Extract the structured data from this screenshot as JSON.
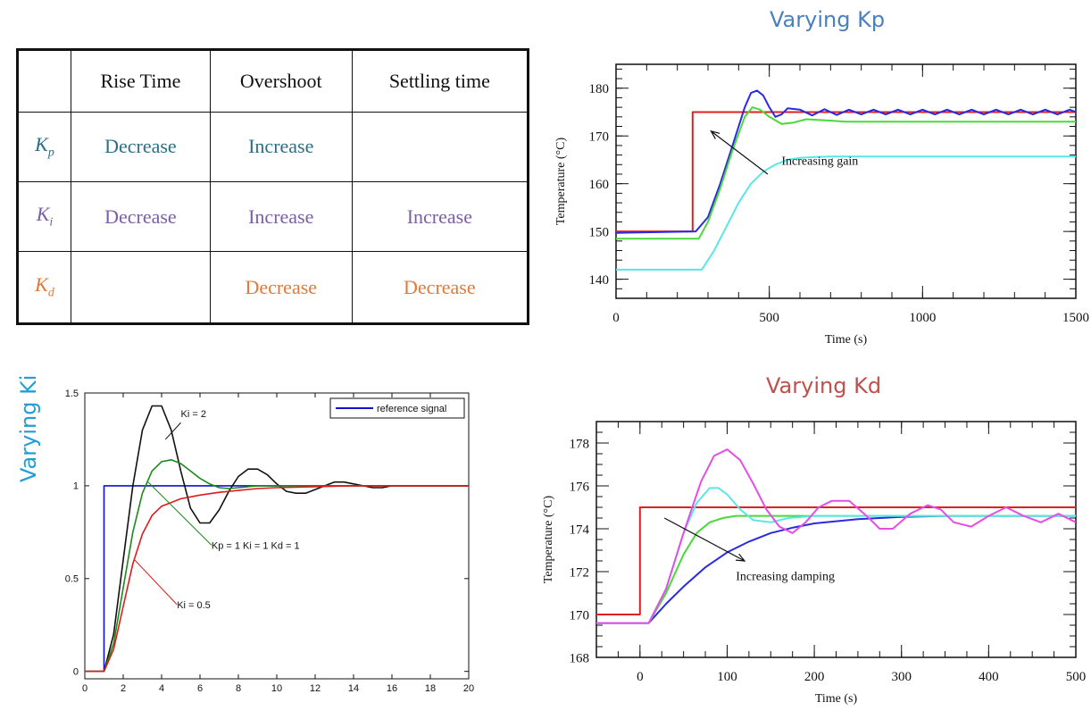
{
  "table": {
    "headers": [
      "",
      "Rise Time",
      "Overshoot",
      "Settling time"
    ],
    "rows": [
      {
        "label": "K",
        "sub": "p",
        "color": "#2a6f8a",
        "cells": [
          "Decrease",
          "Increase",
          ""
        ]
      },
      {
        "label": "K",
        "sub": "i",
        "color": "#7b5ea7",
        "cells": [
          "Decrease",
          "Increase",
          "Increase"
        ]
      },
      {
        "label": "K",
        "sub": "d",
        "color": "#e07a3a",
        "cells": [
          "",
          "Decrease",
          "Decrease"
        ]
      }
    ]
  },
  "chart_data": [
    {
      "type": "line",
      "title": "Varying Kp",
      "xlabel": "Time (s)",
      "ylabel": "Temperature (°C)",
      "xlim": [
        0,
        1500
      ],
      "ylim": [
        136,
        185
      ],
      "xticks": [
        0,
        500,
        1000,
        1500
      ],
      "yticks": [
        140,
        150,
        160,
        170,
        180
      ],
      "annotations": [
        {
          "text": "Increasing gain",
          "x": 540,
          "y": 164
        }
      ],
      "series": [
        {
          "color": "#e02020",
          "x": [
            0,
            250,
            250,
            1500
          ],
          "y": [
            150,
            150,
            175,
            175
          ]
        },
        {
          "color": "#2a2ae0",
          "x": [
            0,
            260,
            300,
            340,
            380,
            420,
            440,
            460,
            480,
            500,
            520,
            540,
            560,
            600,
            640,
            680,
            720,
            760,
            800,
            840,
            880,
            920,
            960,
            1000,
            1040,
            1080,
            1120,
            1160,
            1200,
            1240,
            1280,
            1320,
            1360,
            1400,
            1440,
            1480,
            1500
          ],
          "y": [
            149.7,
            150,
            153,
            160,
            168,
            176,
            179,
            179.5,
            178.5,
            176,
            174,
            174.5,
            175.8,
            175.5,
            174.3,
            175.6,
            174.4,
            175.5,
            174.5,
            175.5,
            174.5,
            175.5,
            174.5,
            175.5,
            174.5,
            175.5,
            174.5,
            175.5,
            174.5,
            175.5,
            174.5,
            175.5,
            174.5,
            175.5,
            174.5,
            175.5,
            175
          ]
        },
        {
          "color": "#4ad93a",
          "x": [
            0,
            270,
            300,
            340,
            380,
            420,
            445,
            470,
            500,
            540,
            580,
            620,
            680,
            750,
            1500
          ],
          "y": [
            148.5,
            148.5,
            152,
            159,
            167,
            174,
            176,
            175.5,
            174,
            172.5,
            172.8,
            173.5,
            173.3,
            173,
            173
          ]
        },
        {
          "color": "#5ae6e6",
          "x": [
            0,
            280,
            320,
            360,
            400,
            440,
            480,
            520,
            560,
            600,
            650,
            700,
            800,
            1500
          ],
          "y": [
            142,
            142,
            146,
            151,
            156,
            160,
            162.5,
            164,
            165,
            165.4,
            165.6,
            165.7,
            165.7,
            165.7
          ]
        }
      ]
    },
    {
      "type": "line",
      "title": "Varying Ki",
      "xlabel": "",
      "ylabel": "",
      "xlim": [
        0,
        20
      ],
      "ylim": [
        -0.04,
        1.5
      ],
      "xticks": [
        0,
        2,
        4,
        6,
        8,
        10,
        12,
        14,
        16,
        18,
        20
      ],
      "yticks": [
        0,
        0.5,
        1,
        1.5
      ],
      "legend": {
        "position": "top-right",
        "entries": [
          "reference signal"
        ]
      },
      "annotations": [
        {
          "text": "Ki = 2",
          "x": 5.0,
          "y": 1.37
        },
        {
          "text": "Kp = 1  Ki = 1  Kd = 1",
          "x": 6.6,
          "y": 0.66
        },
        {
          "text": "Ki = 0.5",
          "x": 4.8,
          "y": 0.34
        }
      ],
      "series": [
        {
          "name": "reference signal",
          "color": "#1010d0",
          "x": [
            0,
            1,
            1,
            20
          ],
          "y": [
            0,
            0,
            1,
            1
          ]
        },
        {
          "color": "#111111",
          "x": [
            0,
            1,
            1.5,
            2,
            2.5,
            3,
            3.5,
            4,
            4.5,
            5,
            5.5,
            6,
            6.5,
            7,
            7.5,
            8,
            8.5,
            9,
            9.5,
            10,
            10.5,
            11,
            11.5,
            12,
            12.5,
            13,
            13.5,
            14,
            14.5,
            15,
            15.5,
            16,
            16.5,
            17,
            18,
            19,
            20
          ],
          "y": [
            0,
            0,
            0.2,
            0.6,
            1.0,
            1.3,
            1.43,
            1.43,
            1.3,
            1.08,
            0.88,
            0.8,
            0.8,
            0.87,
            0.97,
            1.05,
            1.09,
            1.09,
            1.06,
            1.01,
            0.97,
            0.96,
            0.96,
            0.98,
            1.0,
            1.02,
            1.02,
            1.01,
            1.0,
            0.99,
            0.99,
            1.0,
            1.0,
            1.0,
            1.0,
            1.0,
            1.0
          ]
        },
        {
          "color": "#1a8a1a",
          "x": [
            0,
            1,
            1.5,
            2,
            2.5,
            3,
            3.5,
            4,
            4.5,
            5,
            5.5,
            6,
            6.5,
            7,
            7.5,
            8,
            9,
            10,
            11,
            12,
            14,
            16,
            20
          ],
          "y": [
            0,
            0,
            0.15,
            0.45,
            0.75,
            0.96,
            1.08,
            1.13,
            1.14,
            1.12,
            1.08,
            1.04,
            1.01,
            0.99,
            0.985,
            0.99,
            1.0,
            1.0,
            1.0,
            1.0,
            1.0,
            1.0,
            1.0
          ]
        },
        {
          "color": "#e01a1a",
          "x": [
            0,
            1,
            1.5,
            2,
            2.5,
            3,
            3.5,
            4,
            4.5,
            5,
            6,
            7,
            8,
            9,
            10,
            12,
            14,
            16,
            20
          ],
          "y": [
            0,
            0,
            0.12,
            0.35,
            0.58,
            0.74,
            0.84,
            0.89,
            0.91,
            0.93,
            0.95,
            0.965,
            0.975,
            0.985,
            0.99,
            0.995,
            1.0,
            1.0,
            1.0
          ]
        }
      ]
    },
    {
      "type": "line",
      "title": "Varying Kd",
      "xlabel": "Time (s)",
      "ylabel": "Temperature (°C)",
      "xlim": [
        -50,
        500
      ],
      "ylim": [
        168,
        179
      ],
      "xticks": [
        0,
        100,
        200,
        300,
        400,
        500
      ],
      "yticks": [
        168,
        170,
        172,
        174,
        176,
        178
      ],
      "annotations": [
        {
          "text": "Increasing damping",
          "x": 110,
          "y": 171.6
        }
      ],
      "series": [
        {
          "color": "#e02020",
          "x": [
            -50,
            0,
            0,
            500
          ],
          "y": [
            170,
            170,
            175,
            175
          ]
        },
        {
          "color": "#2a2ae0",
          "x": [
            -50,
            10,
            30,
            50,
            75,
            100,
            125,
            150,
            175,
            200,
            250,
            300,
            350,
            400,
            450,
            500
          ],
          "y": [
            169.6,
            169.6,
            170.5,
            171.3,
            172.2,
            172.9,
            173.4,
            173.8,
            174.05,
            174.25,
            174.45,
            174.55,
            174.6,
            174.6,
            174.6,
            174.6
          ]
        },
        {
          "color": "#4ad93a",
          "x": [
            -50,
            10,
            30,
            50,
            65,
            80,
            95,
            110,
            130,
            160,
            200,
            500
          ],
          "y": [
            169.6,
            169.6,
            171,
            172.8,
            173.8,
            174.3,
            174.5,
            174.6,
            174.6,
            174.6,
            174.6,
            174.6
          ]
        },
        {
          "color": "#5ae6e6",
          "x": [
            -50,
            10,
            30,
            50,
            65,
            80,
            90,
            100,
            115,
            130,
            150,
            170,
            200,
            250,
            500
          ],
          "y": [
            169.6,
            169.6,
            171.2,
            173.8,
            175.2,
            175.9,
            175.9,
            175.6,
            174.9,
            174.4,
            174.3,
            174.5,
            174.6,
            174.6,
            174.6
          ]
        },
        {
          "color": "#e64de6",
          "x": [
            -50,
            10,
            30,
            50,
            70,
            85,
            100,
            115,
            130,
            145,
            160,
            175,
            190,
            205,
            220,
            240,
            260,
            275,
            290,
            310,
            330,
            345,
            360,
            380,
            400,
            420,
            440,
            460,
            480,
            500
          ],
          "y": [
            169.6,
            169.6,
            171.2,
            173.8,
            176.2,
            177.4,
            177.7,
            177.2,
            176.1,
            174.9,
            174.1,
            173.8,
            174.3,
            175.0,
            175.3,
            175.3,
            174.6,
            174.0,
            174.0,
            174.7,
            175.1,
            174.9,
            174.3,
            174.1,
            174.6,
            175.0,
            174.6,
            174.3,
            174.7,
            174.3
          ]
        }
      ]
    }
  ]
}
